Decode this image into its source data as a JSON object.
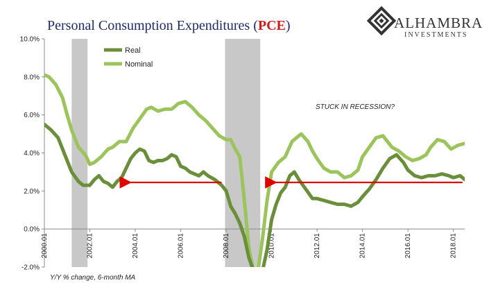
{
  "header": {
    "title_main": "Personal Consumption Expenditures (",
    "title_accent": "PCE",
    "title_close": ")"
  },
  "logo": {
    "name": "ALHAMBRA",
    "subtitle": "INVESTMENTS"
  },
  "footnote": "Y/Y % change, 6-month MA",
  "annotation": "STUCK IN RECESSION?",
  "colors": {
    "real": "#6b8e3a",
    "nominal": "#9cc45c",
    "recession": "#c8c8c8",
    "arrow": "#e00000",
    "title": "#1f2a6b",
    "title_accent": "#d01c1c"
  },
  "chart_data": {
    "type": "line",
    "title": "Personal Consumption Expenditures (PCE)",
    "xlabel": "",
    "ylabel": "",
    "x_range": [
      2000.0,
      2018.5
    ],
    "ylim": [
      -2.0,
      10.0
    ],
    "y_ticks": [
      "-2.0%",
      "0.0%",
      "2.0%",
      "4.0%",
      "6.0%",
      "8.0%",
      "10.0%"
    ],
    "y_tick_values": [
      -2,
      0,
      2,
      4,
      6,
      8,
      10
    ],
    "x_ticks": [
      "2000.01",
      "2002.01",
      "2004.01",
      "2006.01",
      "2008.01",
      "2010.01",
      "2012.01",
      "2014.01",
      "2016.01",
      "2018.01"
    ],
    "x_tick_values": [
      2000,
      2002,
      2004,
      2006,
      2008,
      2010,
      2012,
      2014,
      2016,
      2018
    ],
    "grid": false,
    "legend_position": "top-left",
    "recessions": [
      [
        2001.2,
        2001.9
      ],
      [
        2007.95,
        2009.5
      ]
    ],
    "series": [
      {
        "name": "Real",
        "key": "real",
        "x": [
          2000.0,
          2000.3,
          2000.6,
          2000.9,
          2001.2,
          2001.5,
          2001.7,
          2002.0,
          2002.2,
          2002.4,
          2002.6,
          2002.8,
          2003.0,
          2003.2,
          2003.4,
          2003.6,
          2003.8,
          2004.0,
          2004.2,
          2004.4,
          2004.6,
          2004.8,
          2005.0,
          2005.2,
          2005.4,
          2005.6,
          2005.8,
          2006.0,
          2006.2,
          2006.4,
          2006.6,
          2006.8,
          2007.0,
          2007.2,
          2007.5,
          2007.8,
          2008.0,
          2008.2,
          2008.4,
          2008.6,
          2008.8,
          2009.0,
          2009.2,
          2009.4,
          2009.6,
          2009.8,
          2010.0,
          2010.2,
          2010.4,
          2010.6,
          2010.8,
          2011.0,
          2011.2,
          2011.5,
          2011.8,
          2012.0,
          2012.3,
          2012.6,
          2012.9,
          2013.2,
          2013.5,
          2013.8,
          2014.0,
          2014.3,
          2014.6,
          2014.9,
          2015.2,
          2015.5,
          2015.8,
          2016.0,
          2016.3,
          2016.6,
          2016.9,
          2017.2,
          2017.5,
          2017.8,
          2018.0,
          2018.3,
          2018.5
        ],
        "y": [
          5.5,
          5.2,
          4.8,
          3.9,
          3.0,
          2.5,
          2.3,
          2.3,
          2.6,
          2.8,
          2.5,
          2.4,
          2.2,
          2.5,
          2.7,
          3.2,
          3.7,
          4.0,
          4.2,
          4.1,
          3.6,
          3.5,
          3.6,
          3.6,
          3.7,
          3.9,
          3.8,
          3.3,
          3.2,
          3.0,
          2.9,
          2.8,
          3.0,
          2.8,
          2.6,
          2.3,
          2.0,
          1.2,
          0.8,
          0.3,
          -0.4,
          -1.5,
          -2.2,
          -2.2,
          -2.2,
          -1.1,
          0.5,
          1.3,
          1.9,
          2.2,
          2.8,
          3.0,
          2.6,
          2.1,
          1.6,
          1.6,
          1.5,
          1.4,
          1.3,
          1.3,
          1.2,
          1.4,
          1.7,
          2.1,
          2.6,
          3.2,
          3.7,
          3.9,
          3.5,
          3.1,
          2.8,
          2.7,
          2.8,
          2.8,
          2.9,
          2.8,
          2.7,
          2.8,
          2.6
        ]
      },
      {
        "name": "Nominal",
        "key": "nominal",
        "x": [
          2000.0,
          2000.2,
          2000.5,
          2000.8,
          2001.0,
          2001.2,
          2001.5,
          2001.8,
          2002.0,
          2002.2,
          2002.5,
          2002.8,
          2003.0,
          2003.3,
          2003.6,
          2003.9,
          2004.2,
          2004.5,
          2004.7,
          2005.0,
          2005.3,
          2005.6,
          2005.9,
          2006.2,
          2006.5,
          2006.8,
          2007.1,
          2007.4,
          2007.7,
          2008.0,
          2008.2,
          2008.4,
          2008.6,
          2008.8,
          2009.0,
          2009.2,
          2009.4,
          2009.6,
          2009.8,
          2010.0,
          2010.3,
          2010.6,
          2010.9,
          2011.1,
          2011.3,
          2011.6,
          2011.8,
          2012.0,
          2012.3,
          2012.6,
          2012.9,
          2013.2,
          2013.5,
          2013.8,
          2014.0,
          2014.3,
          2014.6,
          2014.9,
          2015.1,
          2015.3,
          2015.6,
          2015.9,
          2016.2,
          2016.5,
          2016.8,
          2017.0,
          2017.3,
          2017.6,
          2017.9,
          2018.2,
          2018.5
        ],
        "y": [
          8.1,
          8.0,
          7.6,
          6.9,
          6.0,
          5.2,
          4.3,
          3.9,
          3.4,
          3.5,
          3.8,
          4.2,
          4.3,
          4.6,
          4.6,
          5.3,
          5.8,
          6.3,
          6.4,
          6.2,
          6.3,
          6.3,
          6.6,
          6.7,
          6.4,
          6.0,
          5.7,
          5.3,
          4.9,
          4.7,
          4.7,
          4.2,
          3.8,
          1.5,
          -1.0,
          -2.2,
          -2.2,
          -0.5,
          1.5,
          3.0,
          3.5,
          3.8,
          4.6,
          4.8,
          5.0,
          4.6,
          4.1,
          3.7,
          3.2,
          3.0,
          3.0,
          2.7,
          2.8,
          3.1,
          3.8,
          4.3,
          4.8,
          4.9,
          4.6,
          4.3,
          4.1,
          3.8,
          3.6,
          3.7,
          3.9,
          4.3,
          4.7,
          4.6,
          4.2,
          4.4,
          4.5
        ]
      }
    ],
    "annotations": [
      {
        "text": "STUCK IN RECESSION?",
        "x": 2012.6,
        "y": 6.2
      }
    ],
    "arrows": [
      {
        "from": [
          2007.8,
          2.45
        ],
        "to": [
          2003.6,
          2.45
        ]
      },
      {
        "from": [
          2018.4,
          2.45
        ],
        "to": [
          2010.0,
          2.45
        ]
      }
    ]
  }
}
